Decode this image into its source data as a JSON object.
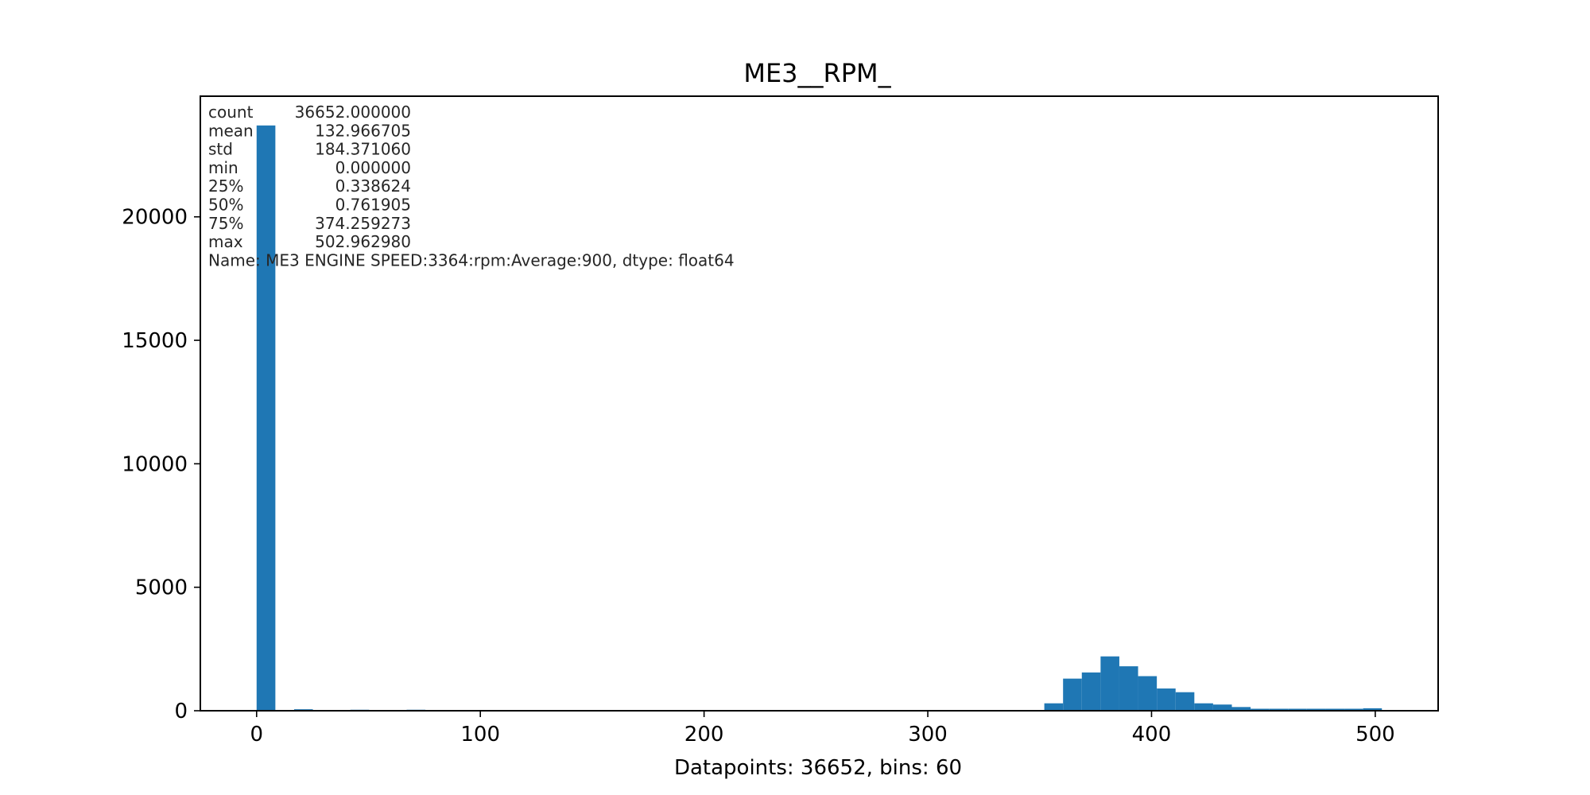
{
  "chart_data": {
    "type": "bar",
    "title": "ME3__RPM_",
    "xlabel": "Datapoints: 36652, bins: 60",
    "ylabel": "",
    "xlim": [
      -25.15,
      528.11
    ],
    "ylim": [
      0,
      24885
    ],
    "xticks": [
      0,
      100,
      200,
      300,
      400,
      500
    ],
    "yticks": [
      0,
      5000,
      10000,
      15000,
      20000
    ],
    "bar_color": "#1f77b4",
    "grid": false,
    "bins": {
      "start": 0,
      "width": 8.38272,
      "counts": [
        23700,
        0,
        60,
        0,
        0,
        40,
        0,
        0,
        40,
        0,
        0,
        0,
        0,
        0,
        30,
        0,
        0,
        0,
        0,
        0,
        0,
        0,
        0,
        0,
        0,
        0,
        0,
        0,
        0,
        0,
        0,
        0,
        0,
        0,
        0,
        0,
        0,
        0,
        0,
        0,
        0,
        0,
        300,
        1300,
        1550,
        2200,
        1800,
        1400,
        900,
        750,
        300,
        250,
        150,
        80,
        80,
        80,
        80,
        80,
        80,
        100
      ]
    },
    "stats_box": [
      "count    36652.000000",
      "mean       132.966705",
      "std        184.371060",
      "min          0.000000",
      "25%          0.338624",
      "50%          0.761905",
      "75%        374.259273",
      "max        502.962980",
      "Name: ME3 ENGINE SPEED:3364:rpm:Average:900, dtype: float64"
    ]
  }
}
